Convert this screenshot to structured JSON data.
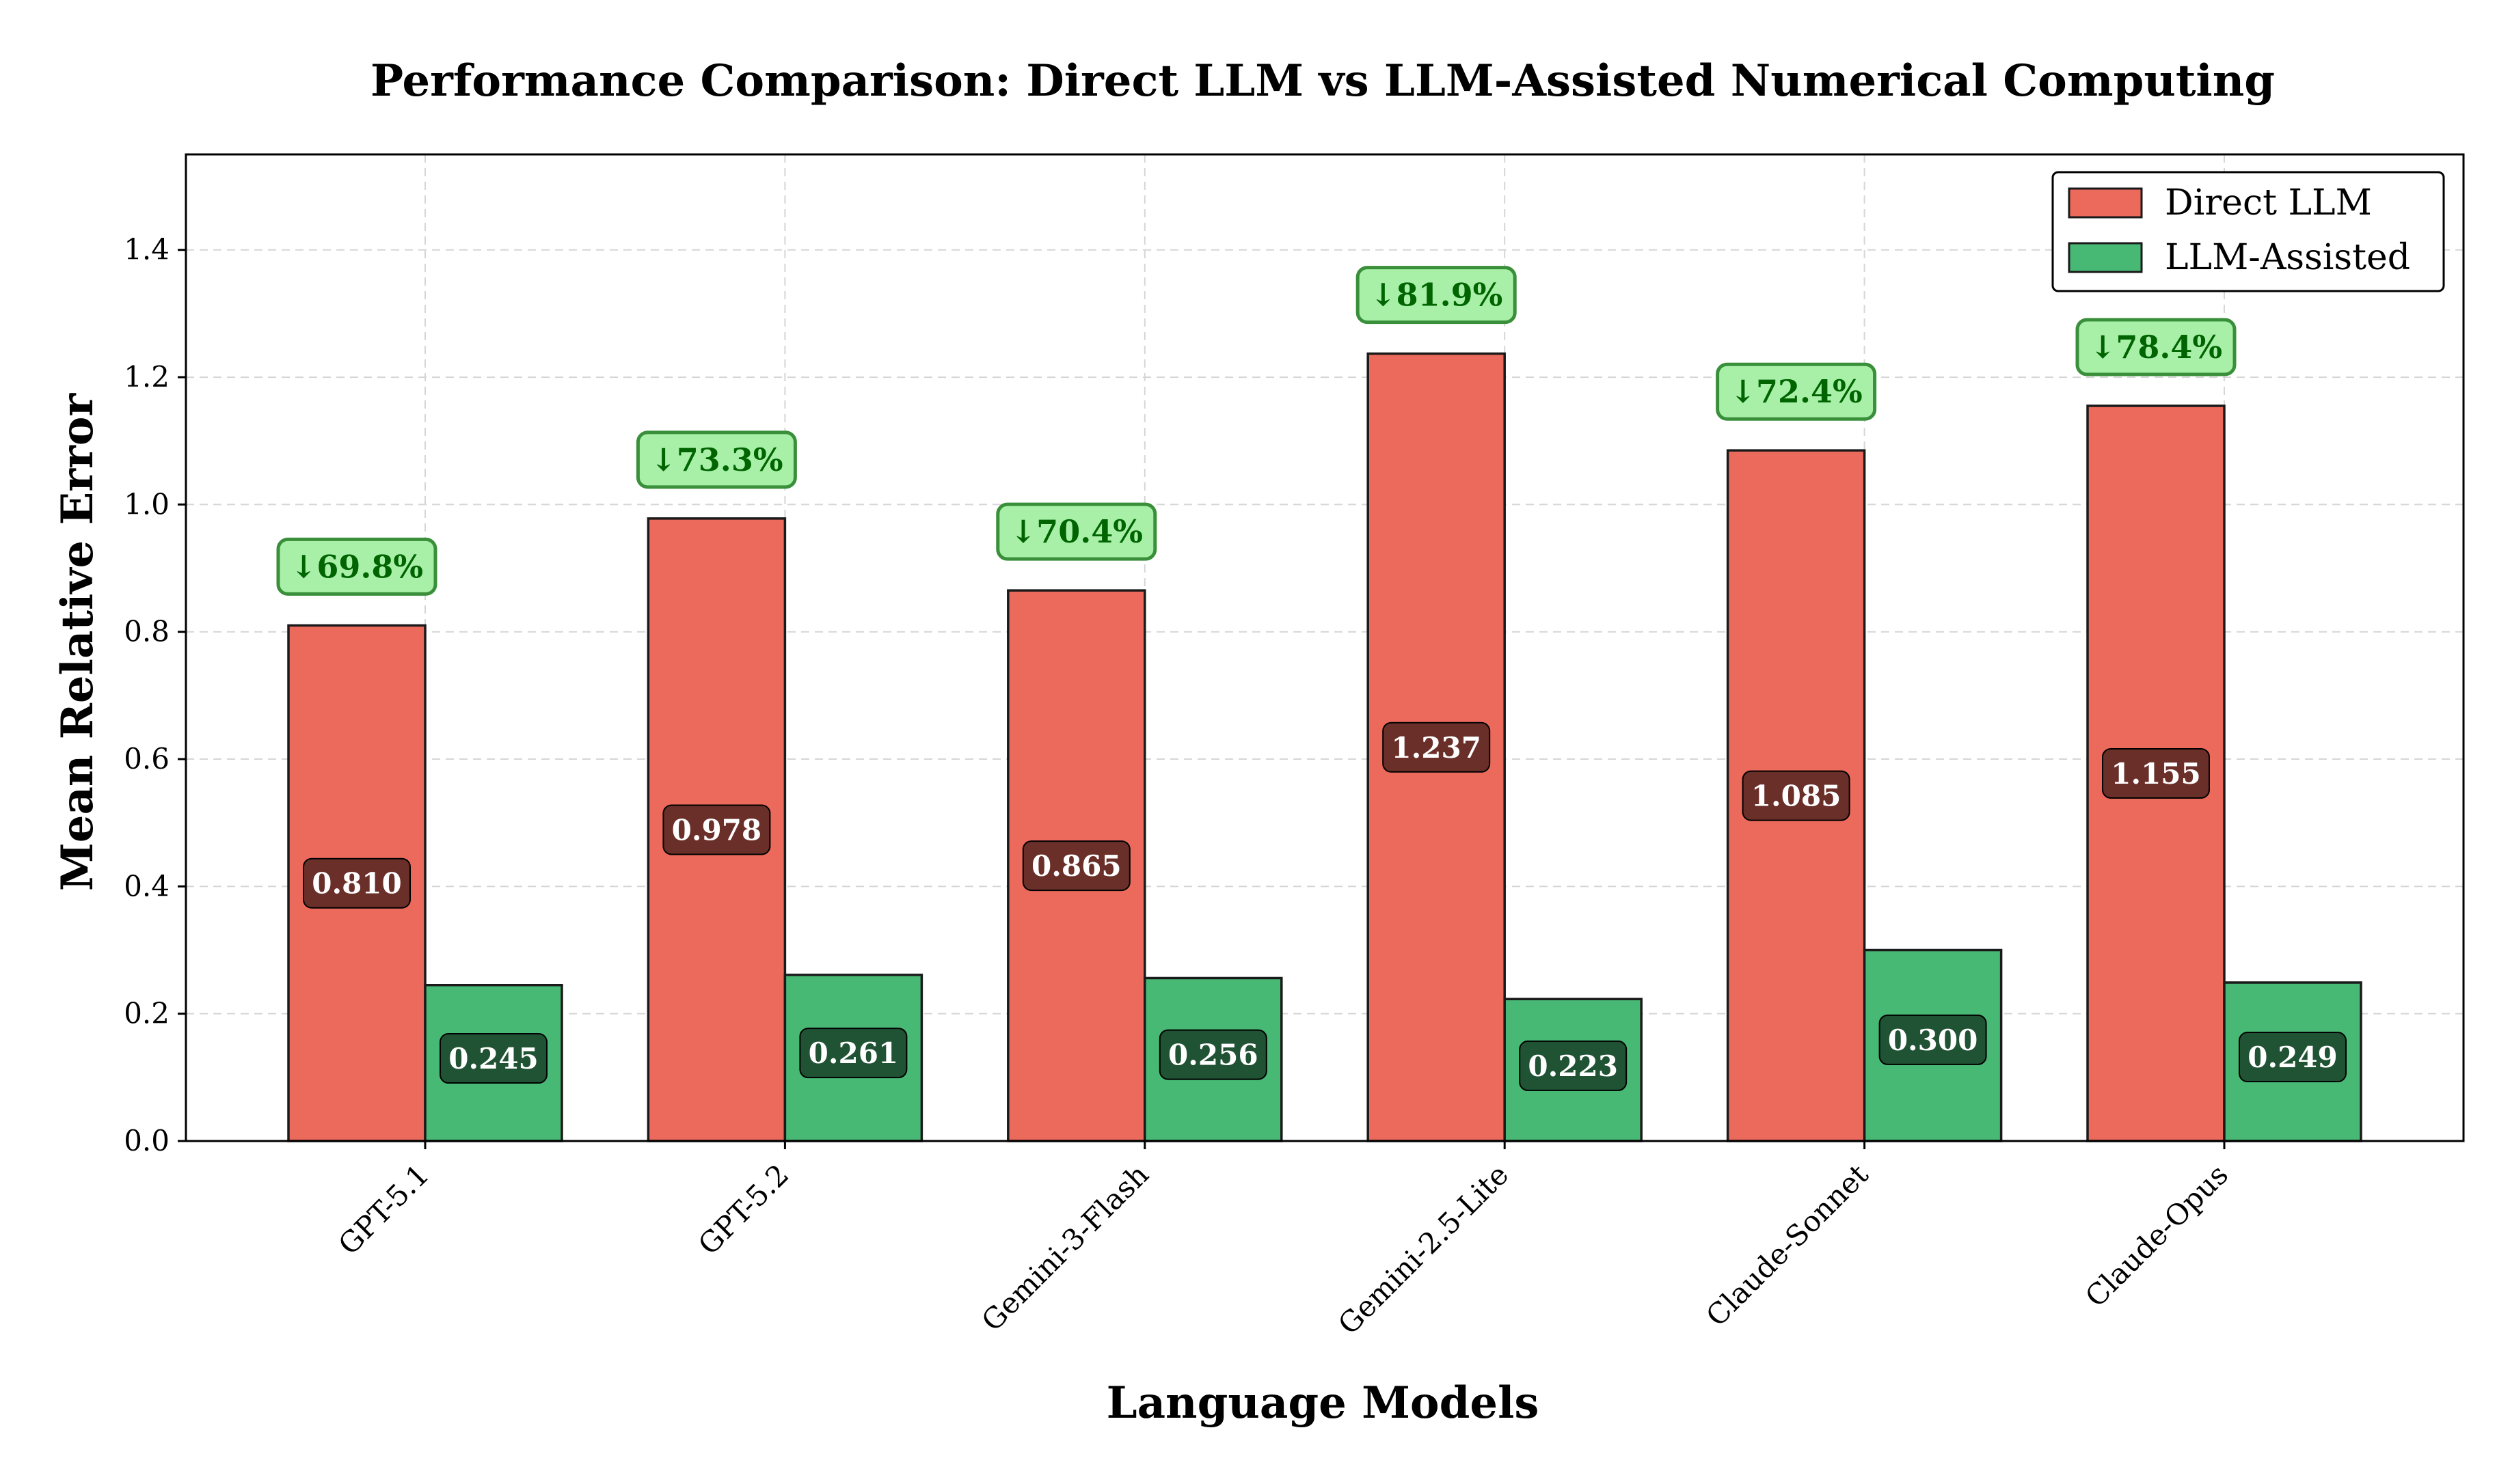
{
  "chart_data": {
    "type": "bar",
    "title": "Performance Comparison: Direct LLM vs LLM-Assisted Numerical Computing",
    "xlabel": "Language Models",
    "ylabel": "Mean Relative Error",
    "ylim": [
      0,
      1.55
    ],
    "yticks": [
      "0.0",
      "0.2",
      "0.4",
      "0.6",
      "0.8",
      "1.0",
      "1.2",
      "1.4"
    ],
    "grid": true,
    "legend_position": "top-right",
    "categories": [
      "GPT-5.1",
      "GPT-5.2",
      "Gemini-3-Flash",
      "Gemini-2.5-Lite",
      "Claude-Sonnet",
      "Claude-Opus"
    ],
    "series": [
      {
        "name": "Direct LLM",
        "color": "#ec6a5c",
        "label_bg": "#5e2a25",
        "values": [
          0.81,
          0.978,
          0.865,
          1.237,
          1.085,
          1.155
        ],
        "labels": [
          "0.810",
          "0.978",
          "0.865",
          "1.237",
          "1.085",
          "1.155"
        ]
      },
      {
        "name": "LLM-Assisted",
        "color": "#48b975",
        "label_bg": "#1d4a2f",
        "values": [
          0.245,
          0.261,
          0.256,
          0.223,
          0.3,
          0.249
        ],
        "labels": [
          "0.245",
          "0.261",
          "0.256",
          "0.223",
          "0.300",
          "0.249"
        ]
      }
    ],
    "annotations": [
      "↓69.8%",
      "↓73.3%",
      "↓70.4%",
      "↓81.9%",
      "↓72.4%",
      "↓78.4%"
    ],
    "annotation_style": {
      "bg": "#a8f0a8",
      "border": "#3a8f3a",
      "text": "#006400"
    }
  }
}
